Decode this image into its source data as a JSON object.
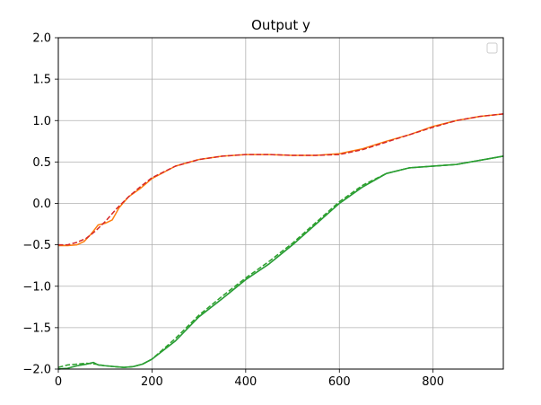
{
  "chart_data": {
    "type": "line",
    "title": "Output y",
    "xlabel": "",
    "ylabel": "",
    "xlim": [
      0,
      950
    ],
    "ylim": [
      -2.0,
      2.0
    ],
    "x_ticks": [
      0,
      200,
      400,
      600,
      800
    ],
    "x_tick_labels": [
      "0",
      "200",
      "400",
      "600",
      "800"
    ],
    "y_ticks": [
      -2.0,
      -1.5,
      -1.0,
      -0.5,
      0.0,
      0.5,
      1.0,
      1.5,
      2.0
    ],
    "y_tick_labels": [
      "−2.0",
      "−1.5",
      "−1.0",
      "−0.5",
      "0.0",
      "0.5",
      "1.0",
      "1.5",
      "2.0"
    ],
    "grid": true,
    "legend": {
      "placement": "top-right",
      "entries": []
    },
    "colors": {
      "blue": "#1f77b4",
      "orange": "#ff7f0e",
      "green": "#2ca02c",
      "red": "#d62728",
      "grid": "#b0b0b0"
    },
    "series": [
      {
        "color": "#ff7f0e",
        "style": "solid",
        "x": [
          0,
          20,
          40,
          55,
          70,
          85,
          100,
          115,
          130,
          150,
          175,
          200,
          250,
          300,
          350,
          400,
          450,
          500,
          550,
          600,
          650,
          700,
          750,
          800,
          850,
          900,
          950
        ],
        "y": [
          -0.51,
          -0.51,
          -0.5,
          -0.46,
          -0.37,
          -0.26,
          -0.24,
          -0.2,
          -0.05,
          0.08,
          0.18,
          0.3,
          0.45,
          0.53,
          0.57,
          0.59,
          0.59,
          0.58,
          0.58,
          0.6,
          0.66,
          0.75,
          0.83,
          0.93,
          1.0,
          1.05,
          1.08
        ]
      },
      {
        "color": "#d62728",
        "style": "dashed",
        "x": [
          0,
          20,
          40,
          60,
          80,
          100,
          125,
          150,
          175,
          200,
          250,
          300,
          350,
          400,
          450,
          500,
          550,
          600,
          650,
          700,
          750,
          800,
          850,
          900,
          950
        ],
        "y": [
          -0.5,
          -0.5,
          -0.47,
          -0.42,
          -0.33,
          -0.22,
          -0.06,
          0.08,
          0.2,
          0.31,
          0.45,
          0.53,
          0.57,
          0.59,
          0.59,
          0.58,
          0.58,
          0.59,
          0.65,
          0.74,
          0.83,
          0.92,
          1.0,
          1.05,
          1.08
        ]
      },
      {
        "color": "#1f77b4",
        "style": "solid",
        "x": [
          0,
          20,
          40,
          60,
          75,
          85,
          100,
          120,
          140,
          160,
          180,
          200,
          250,
          300,
          350,
          400,
          450,
          500,
          550,
          600,
          650,
          700,
          750,
          800,
          850,
          900,
          950
        ],
        "y": [
          -2.0,
          -1.99,
          -1.96,
          -1.94,
          -1.92,
          -1.95,
          -1.96,
          -1.97,
          -1.98,
          -1.97,
          -1.94,
          -1.88,
          -1.66,
          -1.37,
          -1.15,
          -0.92,
          -0.73,
          -0.5,
          -0.25,
          0.0,
          0.2,
          0.36,
          0.43,
          0.45,
          0.47,
          0.52,
          0.57
        ]
      },
      {
        "color": "#2ca02c",
        "style": "dashed",
        "x": [
          0,
          20,
          40,
          60,
          80,
          100,
          120,
          140,
          160,
          180,
          200,
          250,
          300,
          350,
          400,
          450,
          500,
          550,
          600,
          650,
          700,
          750,
          800,
          850,
          900,
          950
        ],
        "y": [
          -1.98,
          -1.95,
          -1.94,
          -1.93,
          -1.94,
          -1.96,
          -1.97,
          -1.98,
          -1.97,
          -1.94,
          -1.88,
          -1.63,
          -1.35,
          -1.12,
          -0.9,
          -0.7,
          -0.48,
          -0.23,
          0.02,
          0.22,
          0.36,
          0.43,
          0.45,
          0.47,
          0.52,
          0.57
        ]
      },
      {
        "color": "#2ca02c",
        "style": "solid",
        "x": [
          0,
          20,
          40,
          60,
          75,
          85,
          100,
          120,
          140,
          160,
          180,
          200,
          250,
          300,
          350,
          400,
          450,
          500,
          550,
          600,
          650,
          700,
          750,
          800,
          850,
          900,
          950
        ],
        "y": [
          -2.0,
          -1.99,
          -1.96,
          -1.94,
          -1.92,
          -1.95,
          -1.96,
          -1.97,
          -1.98,
          -1.97,
          -1.94,
          -1.88,
          -1.66,
          -1.37,
          -1.15,
          -0.92,
          -0.73,
          -0.5,
          -0.25,
          0.0,
          0.2,
          0.36,
          0.43,
          0.45,
          0.47,
          0.52,
          0.57
        ]
      }
    ]
  }
}
